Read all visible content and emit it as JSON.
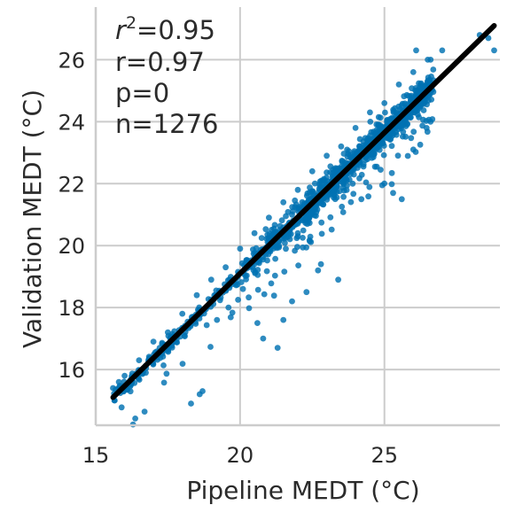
{
  "chart_data": {
    "type": "scatter",
    "xlabel": "Pipeline MEDT (°C)",
    "ylabel": "Validation MEDT (°C)",
    "xlim": [
      15.0,
      29.0
    ],
    "ylim": [
      14.2,
      27.7
    ],
    "xticks": [
      15,
      20,
      25
    ],
    "yticks": [
      16,
      18,
      20,
      22,
      24,
      26
    ],
    "grid": true,
    "point_color": "#0072b2",
    "fit_line_color": "#000000",
    "stats": {
      "r2": "0.95",
      "r": "r=0.97",
      "p": "p=0",
      "n": "n=1276"
    },
    "fit_line": {
      "x": [
        15.6,
        28.8
      ],
      "y": [
        15.1,
        27.1
      ]
    },
    "n_points": 1276,
    "highlighted_points": [
      {
        "x": 15.6,
        "y": 15.4
      },
      {
        "x": 15.8,
        "y": 15.6
      },
      {
        "x": 16.0,
        "y": 15.8
      },
      {
        "x": 16.5,
        "y": 16.3
      },
      {
        "x": 17.0,
        "y": 16.9
      },
      {
        "x": 17.5,
        "y": 17.2
      },
      {
        "x": 18.0,
        "y": 17.8
      },
      {
        "x": 18.5,
        "y": 18.4
      },
      {
        "x": 19.0,
        "y": 18.9
      },
      {
        "x": 19.5,
        "y": 19.3
      },
      {
        "x": 20.0,
        "y": 19.9
      },
      {
        "x": 20.5,
        "y": 20.4
      },
      {
        "x": 21.0,
        "y": 20.9
      },
      {
        "x": 21.5,
        "y": 21.4
      },
      {
        "x": 22.0,
        "y": 21.8
      },
      {
        "x": 22.5,
        "y": 22.4
      },
      {
        "x": 23.0,
        "y": 22.9
      },
      {
        "x": 23.5,
        "y": 23.2
      },
      {
        "x": 24.0,
        "y": 23.8
      },
      {
        "x": 24.5,
        "y": 24.3
      },
      {
        "x": 25.0,
        "y": 24.6
      },
      {
        "x": 25.5,
        "y": 25.2
      },
      {
        "x": 26.0,
        "y": 25.6
      },
      {
        "x": 26.5,
        "y": 26.0
      },
      {
        "x": 27.0,
        "y": 26.3
      },
      {
        "x": 28.3,
        "y": 26.8
      },
      {
        "x": 28.6,
        "y": 26.7
      },
      {
        "x": 28.8,
        "y": 26.3
      },
      {
        "x": 18.3,
        "y": 14.9
      },
      {
        "x": 18.6,
        "y": 15.2
      },
      {
        "x": 18.7,
        "y": 15.3
      },
      {
        "x": 19.2,
        "y": 17.6
      },
      {
        "x": 20.6,
        "y": 17.5
      },
      {
        "x": 20.8,
        "y": 17.0
      },
      {
        "x": 21.3,
        "y": 16.7
      },
      {
        "x": 21.5,
        "y": 17.6
      },
      {
        "x": 21.8,
        "y": 18.2
      },
      {
        "x": 22.3,
        "y": 18.5
      },
      {
        "x": 22.7,
        "y": 19.2
      },
      {
        "x": 22.8,
        "y": 19.4
      },
      {
        "x": 23.4,
        "y": 18.9
      },
      {
        "x": 25.3,
        "y": 21.7
      },
      {
        "x": 25.6,
        "y": 21.5
      },
      {
        "x": 26.0,
        "y": 23.1
      },
      {
        "x": 26.3,
        "y": 24.6
      },
      {
        "x": 26.6,
        "y": 24.0
      },
      {
        "x": 26.1,
        "y": 26.3
      },
      {
        "x": 26.6,
        "y": 26.0
      },
      {
        "x": 21.8,
        "y": 21.0
      },
      {
        "x": 22.0,
        "y": 20.3
      },
      {
        "x": 22.6,
        "y": 21.2
      },
      {
        "x": 23.9,
        "y": 22.0
      },
      {
        "x": 24.2,
        "y": 21.5
      },
      {
        "x": 19.6,
        "y": 18.0
      },
      {
        "x": 20.1,
        "y": 18.6
      }
    ]
  }
}
